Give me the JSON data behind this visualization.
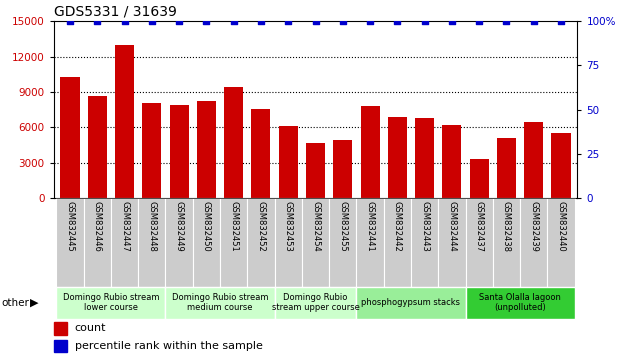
{
  "title": "GDS5331 / 31639",
  "categories": [
    "GSM832445",
    "GSM832446",
    "GSM832447",
    "GSM832448",
    "GSM832449",
    "GSM832450",
    "GSM832451",
    "GSM832452",
    "GSM832453",
    "GSM832454",
    "GSM832455",
    "GSM832441",
    "GSM832442",
    "GSM832443",
    "GSM832444",
    "GSM832437",
    "GSM832438",
    "GSM832439",
    "GSM832440"
  ],
  "counts": [
    10300,
    8700,
    13000,
    8100,
    7900,
    8200,
    9400,
    7600,
    6100,
    4700,
    4900,
    7800,
    6900,
    6800,
    6200,
    3300,
    5100,
    6500,
    5500
  ],
  "percentiles": [
    100,
    100,
    100,
    100,
    100,
    100,
    100,
    100,
    100,
    100,
    100,
    100,
    100,
    100,
    100,
    100,
    100,
    100,
    100
  ],
  "bar_color": "#cc0000",
  "dot_color": "#0000cc",
  "ylim_left": [
    0,
    15000
  ],
  "ylim_right": [
    0,
    100
  ],
  "yticks_left": [
    0,
    3000,
    6000,
    9000,
    12000,
    15000
  ],
  "yticks_right": [
    0,
    25,
    50,
    75,
    100
  ],
  "groups": [
    {
      "label": "Domingo Rubio stream\nlower course",
      "start": 0,
      "end": 4,
      "color": "#ccffcc"
    },
    {
      "label": "Domingo Rubio stream\nmedium course",
      "start": 4,
      "end": 8,
      "color": "#ccffcc"
    },
    {
      "label": "Domingo Rubio\nstream upper course",
      "start": 8,
      "end": 11,
      "color": "#ccffcc"
    },
    {
      "label": "phosphogypsum stacks",
      "start": 11,
      "end": 15,
      "color": "#99ee99"
    },
    {
      "label": "Santa Olalla lagoon\n(unpolluted)",
      "start": 15,
      "end": 19,
      "color": "#33cc33"
    }
  ],
  "other_label": "other",
  "legend_count_label": "count",
  "legend_pct_label": "percentile rank within the sample",
  "tick_bg_color": "#cccccc",
  "plot_bg_color": "#ffffff"
}
